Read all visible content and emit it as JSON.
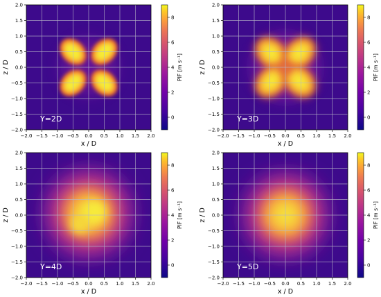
{
  "chart_data": [
    {
      "type": "heatmap",
      "annotation": "Y=2D",
      "xlabel": "x / D",
      "ylabel": "z / D",
      "xlim": [
        -2.0,
        2.0
      ],
      "ylim": [
        -2.0,
        2.0
      ],
      "xticks": [
        "−2.0",
        "−1.5",
        "−1.0",
        "−0.5",
        "0.0",
        "0.5",
        "1.0",
        "1.5",
        "2.0"
      ],
      "yticks": [
        "−2.0",
        "−1.5",
        "−1.0",
        "−0.5",
        "0.0",
        "0.5",
        "1.0",
        "1.5",
        "2.0"
      ],
      "grid": true,
      "colorbar": {
        "label": "PIF [m s⁻¹]",
        "range": [
          -1,
          9
        ],
        "ticks": [
          "0",
          "2",
          "4",
          "6",
          "8"
        ]
      },
      "peak_value": 9,
      "lobes": [
        {
          "x": -0.5,
          "z": 0.5
        },
        {
          "x": 0.5,
          "z": 0.5
        },
        {
          "x": -0.5,
          "z": -0.5
        },
        {
          "x": 0.5,
          "z": -0.5
        }
      ]
    },
    {
      "type": "heatmap",
      "annotation": "Y=3D",
      "xlabel": "x / D",
      "ylabel": "z / D",
      "xlim": [
        -2.0,
        2.0
      ],
      "ylim": [
        -2.0,
        2.0
      ],
      "xticks": [
        "−2.0",
        "−1.5",
        "−1.0",
        "−0.5",
        "0.0",
        "0.5",
        "1.0",
        "1.5",
        "2.0"
      ],
      "yticks": [
        "−2.0",
        "−1.5",
        "−1.0",
        "−0.5",
        "0.0",
        "0.5",
        "1.0",
        "1.5",
        "2.0"
      ],
      "grid": true,
      "colorbar": {
        "label": "PIF [m s⁻¹]",
        "range": [
          -1,
          9
        ],
        "ticks": [
          "0",
          "2",
          "4",
          "6",
          "8"
        ]
      },
      "peak_value": 8.5,
      "lobes": [
        {
          "x": -0.45,
          "z": 0.45
        },
        {
          "x": 0.45,
          "z": 0.45
        },
        {
          "x": -0.45,
          "z": -0.45
        },
        {
          "x": 0.45,
          "z": -0.45
        }
      ]
    },
    {
      "type": "heatmap",
      "annotation": "Y=4D",
      "xlabel": "x / D",
      "ylabel": "z / D",
      "xlim": [
        -2.0,
        2.0
      ],
      "ylim": [
        -2.0,
        2.0
      ],
      "xticks": [
        "−2.0",
        "−1.5",
        "−1.0",
        "−0.5",
        "0.0",
        "0.5",
        "1.0",
        "1.5",
        "2.0"
      ],
      "yticks": [
        "−2.0",
        "−1.5",
        "−1.0",
        "−0.5",
        "0.0",
        "0.5",
        "1.0",
        "1.5",
        "2.0"
      ],
      "grid": true,
      "colorbar": {
        "label": "PIF [m s⁻¹]",
        "range": [
          -1,
          9
        ],
        "ticks": [
          "0",
          "2",
          "4",
          "6",
          "8"
        ]
      },
      "peak_value": 8,
      "lobes": [
        {
          "x": 0.0,
          "z": 0.05
        }
      ]
    },
    {
      "type": "heatmap",
      "annotation": "Y=5D",
      "xlabel": "x / D",
      "ylabel": "z / D",
      "xlim": [
        -2.0,
        2.0
      ],
      "ylim": [
        -2.0,
        2.0
      ],
      "xticks": [
        "−2.0",
        "−1.5",
        "−1.0",
        "−0.5",
        "0.0",
        "0.5",
        "1.0",
        "1.5",
        "2.0"
      ],
      "yticks": [
        "−2.0",
        "−1.5",
        "−1.0",
        "−0.5",
        "0.0",
        "0.5",
        "1.0",
        "1.5",
        "2.0"
      ],
      "grid": true,
      "colorbar": {
        "label": "PIF [m s⁻¹]",
        "range": [
          -1,
          9
        ],
        "ticks": [
          "0",
          "2",
          "4",
          "6",
          "8"
        ]
      },
      "peak_value": 8,
      "lobes": [
        {
          "x": 0.0,
          "z": 0.0
        }
      ]
    }
  ],
  "colors": {
    "low": "#3d0a8c",
    "mid": "#c1358a",
    "high": "#f4e43a",
    "grid": "#b8b8c8"
  }
}
